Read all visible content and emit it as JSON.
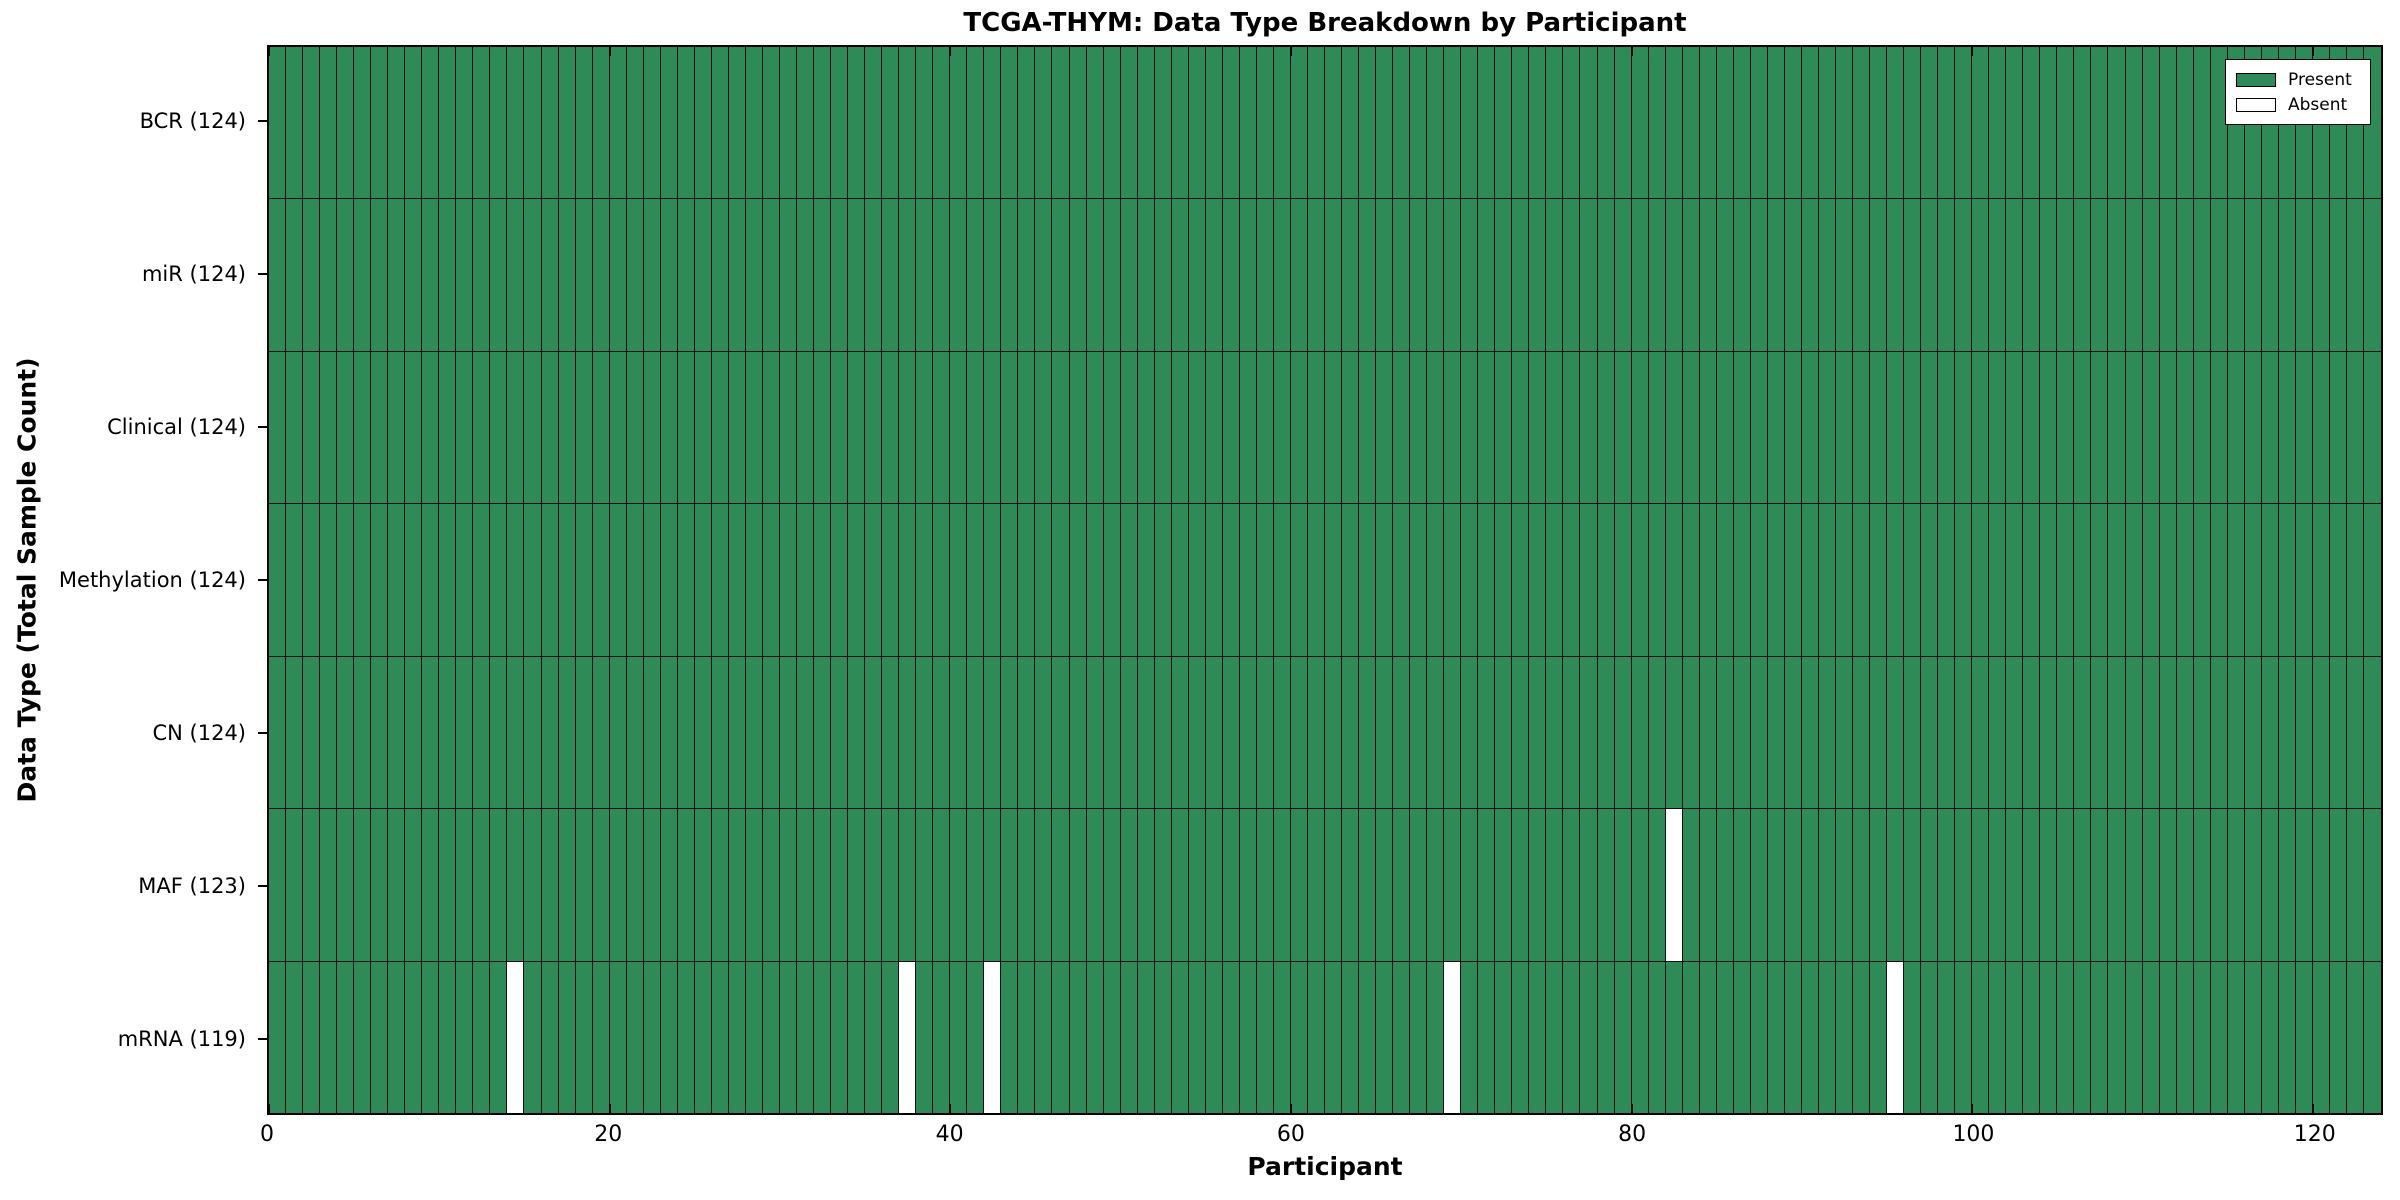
{
  "chart_data": {
    "type": "heatmap",
    "title": "TCGA-THYM: Data Type Breakdown by Participant",
    "xlabel": "Participant",
    "ylabel": "Data Type (Total Sample Count)",
    "x_ticks": [
      0,
      20,
      40,
      60,
      80,
      100,
      120
    ],
    "x_range": [
      0,
      124
    ],
    "n_participants": 124,
    "grid": false,
    "legend_position": "upper right",
    "colors": {
      "present": "#2E8B57",
      "absent": "#FFFFFF",
      "cell_edge": "#101010"
    },
    "legend_items": [
      {
        "label": "Present",
        "color_key": "present"
      },
      {
        "label": "Absent",
        "color_key": "absent"
      }
    ],
    "rows": [
      {
        "data_type": "BCR",
        "label": "BCR (124)",
        "total": 124,
        "absent_participants": []
      },
      {
        "data_type": "miR",
        "label": "miR (124)",
        "total": 124,
        "absent_participants": []
      },
      {
        "data_type": "Clinical",
        "label": "Clinical (124)",
        "total": 124,
        "absent_participants": []
      },
      {
        "data_type": "Methylation",
        "label": "Methylation (124)",
        "total": 124,
        "absent_participants": []
      },
      {
        "data_type": "CN",
        "label": "CN (124)",
        "total": 124,
        "absent_participants": []
      },
      {
        "data_type": "MAF",
        "label": "MAF (123)",
        "total": 123,
        "absent_participants": [
          82
        ]
      },
      {
        "data_type": "mRNA",
        "label": "mRNA (119)",
        "total": 119,
        "absent_participants": [
          14,
          37,
          42,
          69,
          95
        ]
      }
    ]
  }
}
